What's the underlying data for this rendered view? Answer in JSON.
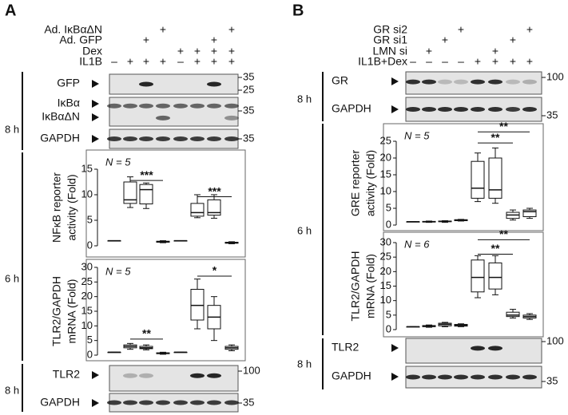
{
  "panels": [
    {
      "letter": "A",
      "treatments": [
        {
          "label": "Ad. IκBαΔN",
          "lanes": [
            null,
            null,
            null,
            "+",
            null,
            null,
            null,
            "+"
          ]
        },
        {
          "label": "Ad. GFP",
          "lanes": [
            null,
            null,
            "+",
            null,
            null,
            null,
            "+",
            null
          ]
        },
        {
          "label": "Dex",
          "lanes": [
            null,
            null,
            null,
            null,
            "+",
            "+",
            "+",
            "+"
          ]
        },
        {
          "label": "IL1B",
          "lanes": [
            "–",
            "+",
            "+",
            "+",
            "–",
            "+",
            "+",
            "+"
          ]
        }
      ],
      "time_labels": [
        "8 h",
        "6 h",
        "8 h"
      ],
      "blots": [
        {
          "labels": [
            "GFP"
          ],
          "markers": [
            "35",
            "25"
          ]
        },
        {
          "labels": [
            "IκBα",
            "IκBαΔN"
          ],
          "markers": [
            "35"
          ]
        },
        {
          "labels": [
            "GAPDH"
          ],
          "markers": [
            "35"
          ]
        },
        {
          "labels": [
            "TLR2"
          ],
          "markers": [
            "100"
          ]
        },
        {
          "labels": [
            "GAPDH"
          ],
          "markers": [
            "35"
          ]
        }
      ]
    },
    {
      "letter": "B",
      "treatments": [
        {
          "label": "GR si2",
          "lanes": [
            null,
            null,
            null,
            "+",
            null,
            null,
            null,
            "+"
          ]
        },
        {
          "label": "GR si1",
          "lanes": [
            null,
            null,
            "+",
            null,
            null,
            null,
            "+",
            null
          ]
        },
        {
          "label": "LMN si",
          "lanes": [
            null,
            "+",
            null,
            null,
            null,
            "+",
            null,
            null
          ]
        },
        {
          "label": "IL1B+Dex",
          "lanes": [
            "–",
            "–",
            "–",
            "–",
            "+",
            "+",
            "+",
            "+"
          ]
        }
      ],
      "time_labels": [
        "8 h",
        "6 h",
        "8 h"
      ],
      "blots": [
        {
          "labels": [
            "GR"
          ],
          "markers": [
            "100"
          ]
        },
        {
          "labels": [
            "GAPDH"
          ],
          "markers": [
            "35"
          ]
        },
        {
          "labels": [
            "TLR2"
          ],
          "markers": [
            "100"
          ]
        },
        {
          "labels": [
            "GAPDH"
          ],
          "markers": [
            "35"
          ]
        }
      ]
    }
  ],
  "chart_data": [
    {
      "type": "box",
      "ylabel": [
        "NFκB reporter",
        "activity (Fold)"
      ],
      "annotation": "N = 5",
      "ylim": [
        0,
        15
      ],
      "yticks": [
        0,
        5,
        10,
        15
      ],
      "boxes": [
        [
          1,
          1,
          1,
          1,
          1
        ],
        [
          7.5,
          8.3,
          9,
          12.5,
          13.5
        ],
        [
          7.3,
          8.2,
          11,
          12,
          12.3
        ],
        [
          0.6,
          0.7,
          0.8,
          0.9,
          1
        ],
        [
          1,
          1,
          1,
          1,
          1
        ],
        [
          5.5,
          5.8,
          6.5,
          8.3,
          10
        ],
        [
          5.4,
          6,
          6.5,
          9,
          10
        ],
        [
          0.4,
          0.5,
          0.6,
          0.7,
          0.8
        ]
      ],
      "significance": [
        {
          "label": "***",
          "lanes": [
            1,
            3
          ],
          "level": 12.8
        },
        {
          "label": "***",
          "lanes": [
            5,
            7
          ],
          "level": 9.6
        }
      ]
    },
    {
      "type": "box",
      "ylabel": [
        "TLR2/GAPDH",
        "mRNA (Fold)"
      ],
      "annotation": "N = 5",
      "ylim": [
        0,
        30
      ],
      "yticks": [
        0,
        5,
        10,
        15,
        20,
        25,
        30
      ],
      "boxes": [
        [
          1,
          1,
          1,
          1,
          1
        ],
        [
          2,
          2.5,
          3,
          3.5,
          4
        ],
        [
          1.8,
          2.2,
          2.5,
          3,
          3.5
        ],
        [
          0.3,
          0.5,
          0.6,
          0.8,
          1
        ],
        [
          1,
          1,
          1,
          1,
          1
        ],
        [
          9,
          12,
          17,
          22.5,
          26
        ],
        [
          5,
          9,
          13,
          17,
          20
        ],
        [
          1.5,
          2,
          2.5,
          3,
          3.5
        ]
      ],
      "significance": [
        {
          "label": "**",
          "lanes": [
            1,
            3
          ],
          "level": 5.5
        },
        {
          "label": "*",
          "lanes": [
            5,
            7
          ],
          "level": 27
        }
      ]
    },
    {
      "type": "box",
      "ylabel": [
        "GRE reporter",
        "activity (Fold)"
      ],
      "annotation": "N = 5",
      "ylim": [
        0,
        25
      ],
      "yticks": [
        0,
        5,
        10,
        15,
        20,
        25
      ],
      "boxes": [
        [
          1,
          1,
          1,
          1,
          1
        ],
        [
          0.8,
          0.9,
          1,
          1.1,
          1.2
        ],
        [
          0.8,
          1,
          1.1,
          1.2,
          1.3
        ],
        [
          1.2,
          1.3,
          1.5,
          1.6,
          1.7
        ],
        [
          7,
          8,
          11,
          19,
          21.5
        ],
        [
          6.5,
          8,
          10.5,
          20,
          23
        ],
        [
          1.5,
          2,
          3,
          3.8,
          4.5
        ],
        [
          2,
          2.5,
          4,
          4.5,
          5
        ]
      ],
      "significance": [
        {
          "label": "**",
          "lanes": [
            4,
            7
          ],
          "level": 27.8
        },
        {
          "label": "**",
          "lanes": [
            4,
            6
          ],
          "level": 24.5
        }
      ]
    },
    {
      "type": "box",
      "ylabel": [
        "TLR2/GAPDH",
        "mRNA (Fold)"
      ],
      "annotation": "N = 6",
      "ylim": [
        0,
        30
      ],
      "yticks": [
        0,
        5,
        10,
        15,
        20,
        25,
        30
      ],
      "boxes": [
        [
          1,
          1,
          1,
          1,
          1
        ],
        [
          0.8,
          1,
          1.2,
          1.4,
          1.6
        ],
        [
          1,
          1.3,
          1.8,
          2.2,
          2.5
        ],
        [
          1,
          1.2,
          1.5,
          1.8,
          2
        ],
        [
          11,
          13,
          18,
          24,
          25.5
        ],
        [
          12,
          14,
          18,
          23,
          25.5
        ],
        [
          4,
          4.5,
          5,
          6,
          7
        ],
        [
          3.5,
          4,
          4.5,
          5,
          5.5
        ]
      ],
      "significance": [
        {
          "label": "**",
          "lanes": [
            4,
            7
          ],
          "level": 31
        },
        {
          "label": "**",
          "lanes": [
            4,
            6
          ],
          "level": 26
        }
      ]
    }
  ]
}
